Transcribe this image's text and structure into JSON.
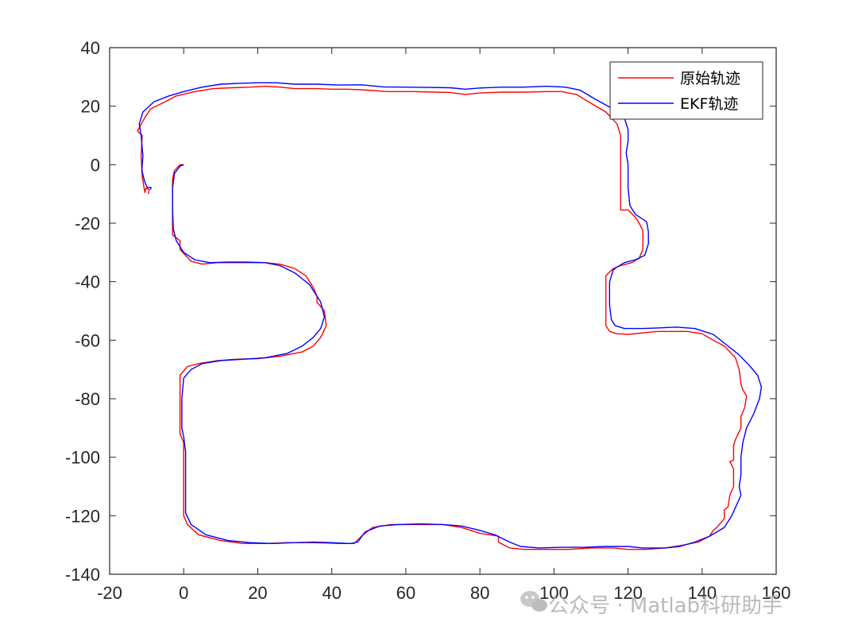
{
  "chart_data": {
    "type": "line",
    "title": "",
    "xlabel": "",
    "ylabel": "",
    "xlim": [
      -20,
      160
    ],
    "ylim": [
      -140,
      40
    ],
    "xticks": [
      -20,
      0,
      20,
      40,
      60,
      80,
      100,
      120,
      140,
      160
    ],
    "yticks": [
      40,
      20,
      0,
      -20,
      -40,
      -60,
      -80,
      -100,
      -120,
      -140
    ],
    "xtick_labels": [
      "-20",
      "0",
      "20",
      "40",
      "60",
      "80",
      "100",
      "120",
      "140",
      "160"
    ],
    "ytick_labels": [
      "40",
      "20",
      "0",
      "-20",
      "-40",
      "-60",
      "-80",
      "-100",
      "-120",
      "-140"
    ],
    "grid": false,
    "legend_position": "top-right",
    "series": [
      {
        "name": "原始轨迹",
        "color": "#ff0000",
        "points": [
          [
            -9.6,
            -10
          ],
          [
            -9.3,
            -8.5
          ],
          [
            -10.2,
            -8
          ],
          [
            -10.5,
            -9.5
          ],
          [
            -11.2,
            -4
          ],
          [
            -11.5,
            3
          ],
          [
            -11.2,
            10
          ],
          [
            -12.5,
            11.5
          ],
          [
            -11,
            15
          ],
          [
            -9,
            19
          ],
          [
            -5,
            21.5
          ],
          [
            -2,
            23.5
          ],
          [
            3,
            25
          ],
          [
            8,
            26
          ],
          [
            13,
            26.3
          ],
          [
            18,
            26.5
          ],
          [
            22,
            26.8
          ],
          [
            26,
            26.5
          ],
          [
            30,
            26
          ],
          [
            36,
            26
          ],
          [
            40,
            25.8
          ],
          [
            44,
            25.8
          ],
          [
            48,
            25.6
          ],
          [
            55,
            25
          ],
          [
            62,
            25
          ],
          [
            68,
            24.8
          ],
          [
            72,
            24.7
          ],
          [
            76,
            24
          ],
          [
            80,
            24.5
          ],
          [
            86,
            24.8
          ],
          [
            92,
            24.8
          ],
          [
            98,
            25
          ],
          [
            102,
            25
          ],
          [
            106,
            24
          ],
          [
            110,
            21
          ],
          [
            114,
            18
          ],
          [
            117,
            14
          ],
          [
            118,
            10
          ],
          [
            118,
            0
          ],
          [
            118,
            -8
          ],
          [
            118,
            -15.5
          ],
          [
            120,
            -15.5
          ],
          [
            122,
            -18
          ],
          [
            123,
            -20
          ],
          [
            124,
            -22.5
          ],
          [
            124,
            -25
          ],
          [
            124,
            -29
          ],
          [
            123,
            -32
          ],
          [
            121,
            -33.5
          ],
          [
            118,
            -34.5
          ],
          [
            116,
            -35.5
          ],
          [
            114,
            -38
          ],
          [
            114,
            -45
          ],
          [
            114,
            -55
          ],
          [
            115,
            -57
          ],
          [
            117,
            -57.8
          ],
          [
            120,
            -58
          ],
          [
            124,
            -57.5
          ],
          [
            128,
            -57
          ],
          [
            132,
            -57
          ],
          [
            136,
            -57
          ],
          [
            140,
            -57.8
          ],
          [
            143,
            -60
          ],
          [
            146,
            -62
          ],
          [
            149,
            -66
          ],
          [
            150,
            -70
          ],
          [
            150.5,
            -75
          ],
          [
            151,
            -77
          ],
          [
            152,
            -79
          ],
          [
            151.5,
            -83
          ],
          [
            150.5,
            -86
          ],
          [
            150.5,
            -90
          ],
          [
            149,
            -94
          ],
          [
            148.5,
            -96
          ],
          [
            148.5,
            -101
          ],
          [
            147.5,
            -101.5
          ],
          [
            148.5,
            -104
          ],
          [
            148.5,
            -110
          ],
          [
            147.5,
            -113
          ],
          [
            147,
            -117
          ],
          [
            146,
            -118
          ],
          [
            146,
            -121
          ],
          [
            144,
            -124
          ],
          [
            143,
            -125
          ],
          [
            142,
            -127
          ],
          [
            139,
            -129
          ],
          [
            135,
            -130
          ],
          [
            130,
            -131
          ],
          [
            125,
            -131.5
          ],
          [
            120,
            -131.5
          ],
          [
            116,
            -131
          ],
          [
            110,
            -131
          ],
          [
            104,
            -131.5
          ],
          [
            98,
            -131.5
          ],
          [
            92,
            -131.5
          ],
          [
            88,
            -131
          ],
          [
            85,
            -129
          ],
          [
            85,
            -127
          ],
          [
            80,
            -126
          ],
          [
            75,
            -124
          ],
          [
            70,
            -123
          ],
          [
            65,
            -123
          ],
          [
            60,
            -123
          ],
          [
            56,
            -123
          ],
          [
            51,
            -124
          ],
          [
            48,
            -127
          ],
          [
            46,
            -129.5
          ],
          [
            42,
            -129.5
          ],
          [
            38,
            -129.3
          ],
          [
            33,
            -129.2
          ],
          [
            28,
            -129.2
          ],
          [
            22,
            -129.5
          ],
          [
            16,
            -129.5
          ],
          [
            10,
            -128.5
          ],
          [
            4,
            -126.5
          ],
          [
            1,
            -123
          ],
          [
            0,
            -120
          ],
          [
            0,
            -105
          ],
          [
            0,
            -95
          ],
          [
            -1,
            -92
          ],
          [
            -1,
            -80
          ],
          [
            -1,
            -72
          ],
          [
            1,
            -69
          ],
          [
            4,
            -68
          ],
          [
            9,
            -67
          ],
          [
            14,
            -66.5
          ],
          [
            20,
            -66.3
          ],
          [
            26,
            -65.5
          ],
          [
            32,
            -64
          ],
          [
            35,
            -62
          ],
          [
            37,
            -59
          ],
          [
            38.5,
            -55
          ],
          [
            38,
            -50
          ],
          [
            36,
            -47
          ],
          [
            36,
            -45
          ],
          [
            35,
            -42
          ],
          [
            33,
            -38
          ],
          [
            30,
            -35.5
          ],
          [
            26,
            -34
          ],
          [
            22,
            -33.5
          ],
          [
            18,
            -33.5
          ],
          [
            14,
            -33.5
          ],
          [
            9,
            -33.5
          ],
          [
            5,
            -34
          ],
          [
            2,
            -33
          ],
          [
            -1,
            -29
          ],
          [
            -1,
            -26
          ],
          [
            -3,
            -24
          ],
          [
            -3,
            -20
          ],
          [
            -3,
            -10
          ],
          [
            -3,
            -5
          ],
          [
            -2.5,
            -2
          ],
          [
            -1,
            0
          ],
          [
            0,
            0
          ]
        ]
      },
      {
        "name": "EKF轨迹",
        "color": "#0000ff",
        "points": [
          [
            -9,
            -8.5
          ],
          [
            -8.8,
            -7.8
          ],
          [
            -9.8,
            -7.8
          ],
          [
            -10.5,
            -6
          ],
          [
            -11.3,
            -2
          ],
          [
            -11,
            3
          ],
          [
            -11.5,
            10
          ],
          [
            -12,
            14
          ],
          [
            -11,
            18
          ],
          [
            -8,
            21.5
          ],
          [
            -4,
            23.5
          ],
          [
            0,
            25
          ],
          [
            5,
            26.5
          ],
          [
            10,
            27.5
          ],
          [
            15,
            27.8
          ],
          [
            20,
            28
          ],
          [
            25,
            28
          ],
          [
            30,
            27.5
          ],
          [
            36,
            27.5
          ],
          [
            42,
            27.2
          ],
          [
            48,
            27.3
          ],
          [
            54,
            26.6
          ],
          [
            60,
            26.5
          ],
          [
            66,
            26.4
          ],
          [
            72,
            26.3
          ],
          [
            76,
            25.8
          ],
          [
            80,
            26.2
          ],
          [
            86,
            26.5
          ],
          [
            92,
            26.5
          ],
          [
            98,
            26.8
          ],
          [
            103,
            26.5
          ],
          [
            107,
            25.5
          ],
          [
            111,
            22.5
          ],
          [
            116,
            19
          ],
          [
            119,
            16
          ],
          [
            120,
            12
          ],
          [
            120,
            8
          ],
          [
            119.5,
            4
          ],
          [
            120,
            0
          ],
          [
            120,
            -8
          ],
          [
            120.5,
            -14
          ],
          [
            122,
            -17
          ],
          [
            125,
            -19.5
          ],
          [
            125.5,
            -23
          ],
          [
            125.5,
            -27
          ],
          [
            124.5,
            -31
          ],
          [
            122,
            -32.5
          ],
          [
            119,
            -33.5
          ],
          [
            117,
            -35
          ],
          [
            116,
            -36
          ],
          [
            115,
            -40
          ],
          [
            115,
            -48
          ],
          [
            115.5,
            -53
          ],
          [
            116.5,
            -55
          ],
          [
            119,
            -56
          ],
          [
            124,
            -56
          ],
          [
            128,
            -55.8
          ],
          [
            133,
            -55.5
          ],
          [
            138,
            -56
          ],
          [
            143,
            -58
          ],
          [
            146,
            -61
          ],
          [
            150,
            -65
          ],
          [
            153,
            -69
          ],
          [
            155,
            -72
          ],
          [
            156,
            -76
          ],
          [
            155.5,
            -80
          ],
          [
            154,
            -85
          ],
          [
            152,
            -90
          ],
          [
            151,
            -95
          ],
          [
            150.5,
            -100
          ],
          [
            150.5,
            -106
          ],
          [
            150,
            -110
          ],
          [
            150.5,
            -113
          ],
          [
            148,
            -120
          ],
          [
            146,
            -124
          ],
          [
            142,
            -127
          ],
          [
            138,
            -129
          ],
          [
            134,
            -130.5
          ],
          [
            130,
            -131
          ],
          [
            124,
            -131
          ],
          [
            120,
            -130.5
          ],
          [
            114,
            -130.5
          ],
          [
            108,
            -130.8
          ],
          [
            102,
            -130.8
          ],
          [
            96,
            -131
          ],
          [
            91,
            -130.5
          ],
          [
            88,
            -129
          ],
          [
            84,
            -126.5
          ],
          [
            80,
            -125
          ],
          [
            75,
            -123.5
          ],
          [
            70,
            -123
          ],
          [
            64,
            -122.8
          ],
          [
            58,
            -123
          ],
          [
            53,
            -123.5
          ],
          [
            49,
            -125.5
          ],
          [
            47,
            -129
          ],
          [
            45,
            -129.5
          ],
          [
            40,
            -129.2
          ],
          [
            35,
            -129
          ],
          [
            30,
            -129.2
          ],
          [
            24,
            -129.5
          ],
          [
            18,
            -129.2
          ],
          [
            12,
            -128.5
          ],
          [
            6,
            -126.5
          ],
          [
            2,
            -123
          ],
          [
            0.5,
            -119
          ],
          [
            0.5,
            -110
          ],
          [
            0.5,
            -98
          ],
          [
            0,
            -93
          ],
          [
            -0.5,
            -90
          ],
          [
            -0.5,
            -80
          ],
          [
            0,
            -73
          ],
          [
            2,
            -70
          ],
          [
            5,
            -68
          ],
          [
            10,
            -67
          ],
          [
            16,
            -66.5
          ],
          [
            22,
            -66
          ],
          [
            28,
            -64.5
          ],
          [
            32,
            -62
          ],
          [
            35,
            -59
          ],
          [
            37,
            -56
          ],
          [
            38,
            -52
          ],
          [
            37,
            -47
          ],
          [
            34,
            -41
          ],
          [
            30,
            -37
          ],
          [
            26,
            -34.5
          ],
          [
            22,
            -33.5
          ],
          [
            17,
            -33.3
          ],
          [
            12,
            -33.3
          ],
          [
            7,
            -33.5
          ],
          [
            3,
            -32.5
          ],
          [
            0,
            -30
          ],
          [
            -2,
            -26
          ],
          [
            -2.8,
            -22
          ],
          [
            -3,
            -15
          ],
          [
            -3,
            -8
          ],
          [
            -2.5,
            -3
          ],
          [
            -1,
            -0.5
          ],
          [
            0,
            0
          ]
        ]
      }
    ]
  },
  "legend": {
    "items": [
      {
        "label": "原始轨迹",
        "color": "#ff0000"
      },
      {
        "label": "EKF轨迹",
        "color": "#0000ff"
      }
    ]
  },
  "watermark": {
    "text": "公众号 · Matlab科研助手"
  }
}
